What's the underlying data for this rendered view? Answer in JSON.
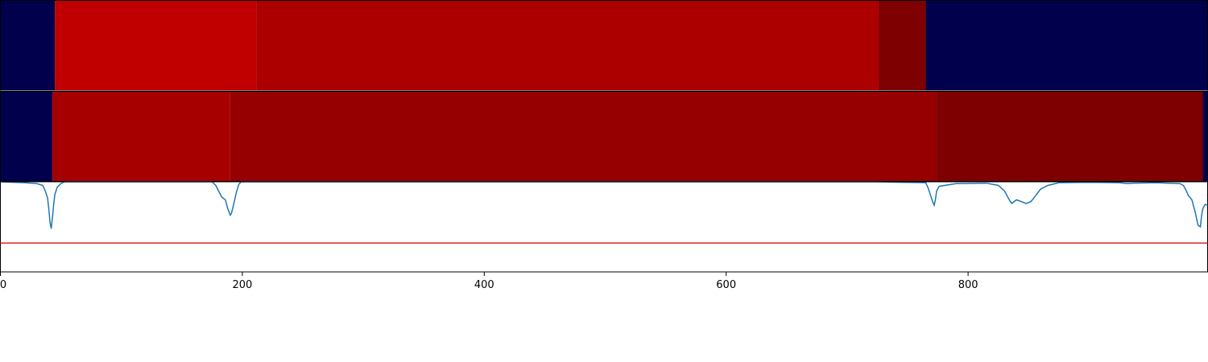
{
  "chart_data": {
    "type": "heatmap",
    "xlim": [
      0,
      998
    ],
    "x_ticks": [
      0,
      200,
      400,
      600,
      800
    ],
    "grid": false,
    "colors": {
      "background": "#ffffff",
      "segment_low": "#00004c",
      "threshold_line": "#d62728",
      "signal_line": "#1f77b4"
    },
    "tracks": [
      {
        "segments": [
          {
            "start": 0,
            "end": 45,
            "color": "#00004c"
          },
          {
            "start": 45,
            "end": 212,
            "color": "#c00000"
          },
          {
            "start": 212,
            "end": 726,
            "color": "#ac0000"
          },
          {
            "start": 726,
            "end": 765,
            "color": "#7e0000"
          },
          {
            "start": 765,
            "end": 998,
            "color": "#00004c"
          }
        ]
      },
      {
        "segments": [
          {
            "start": 0,
            "end": 43,
            "color": "#00004c"
          },
          {
            "start": 43,
            "end": 190,
            "color": "#a60000"
          },
          {
            "start": 190,
            "end": 774,
            "color": "#960000"
          },
          {
            "start": 774,
            "end": 994,
            "color": "#7e0000"
          },
          {
            "start": 994,
            "end": 998,
            "color": "#00004c"
          }
        ]
      }
    ],
    "signal": {
      "y_range": [
        0.0,
        1.0
      ],
      "threshold": 0.32,
      "points": [
        [
          0,
          1.0
        ],
        [
          20,
          0.99
        ],
        [
          30,
          0.98
        ],
        [
          35,
          0.96
        ],
        [
          37,
          0.9
        ],
        [
          39,
          0.82
        ],
        [
          40,
          0.7
        ],
        [
          41,
          0.55
        ],
        [
          42,
          0.48
        ],
        [
          43,
          0.6
        ],
        [
          44,
          0.74
        ],
        [
          45,
          0.86
        ],
        [
          47,
          0.94
        ],
        [
          50,
          0.98
        ],
        [
          53,
          1.0
        ],
        [
          175,
          1.0
        ],
        [
          178,
          0.96
        ],
        [
          181,
          0.88
        ],
        [
          183,
          0.83
        ],
        [
          186,
          0.8
        ],
        [
          188,
          0.7
        ],
        [
          190,
          0.63
        ],
        [
          191,
          0.65
        ],
        [
          193,
          0.76
        ],
        [
          195,
          0.88
        ],
        [
          197,
          0.97
        ],
        [
          199,
          1.0
        ],
        [
          725,
          1.0
        ],
        [
          745,
          0.995
        ],
        [
          765,
          0.99
        ],
        [
          767,
          0.93
        ],
        [
          769,
          0.85
        ],
        [
          771,
          0.77
        ],
        [
          772,
          0.74
        ],
        [
          773,
          0.8
        ],
        [
          774,
          0.9
        ],
        [
          776,
          0.95
        ],
        [
          790,
          0.98
        ],
        [
          815,
          0.985
        ],
        [
          825,
          0.96
        ],
        [
          830,
          0.9
        ],
        [
          834,
          0.8
        ],
        [
          836,
          0.76
        ],
        [
          840,
          0.8
        ],
        [
          848,
          0.76
        ],
        [
          852,
          0.78
        ],
        [
          856,
          0.85
        ],
        [
          860,
          0.92
        ],
        [
          866,
          0.96
        ],
        [
          875,
          0.99
        ],
        [
          900,
          0.995
        ],
        [
          925,
          0.99
        ],
        [
          932,
          0.98
        ],
        [
          936,
          0.985
        ],
        [
          955,
          0.99
        ],
        [
          975,
          0.98
        ],
        [
          978,
          0.96
        ],
        [
          980,
          0.91
        ],
        [
          982,
          0.85
        ],
        [
          985,
          0.8
        ],
        [
          988,
          0.65
        ],
        [
          990,
          0.52
        ],
        [
          992,
          0.5
        ],
        [
          993,
          0.62
        ],
        [
          994,
          0.7
        ],
        [
          996,
          0.75
        ],
        [
          998,
          0.74
        ]
      ]
    }
  }
}
